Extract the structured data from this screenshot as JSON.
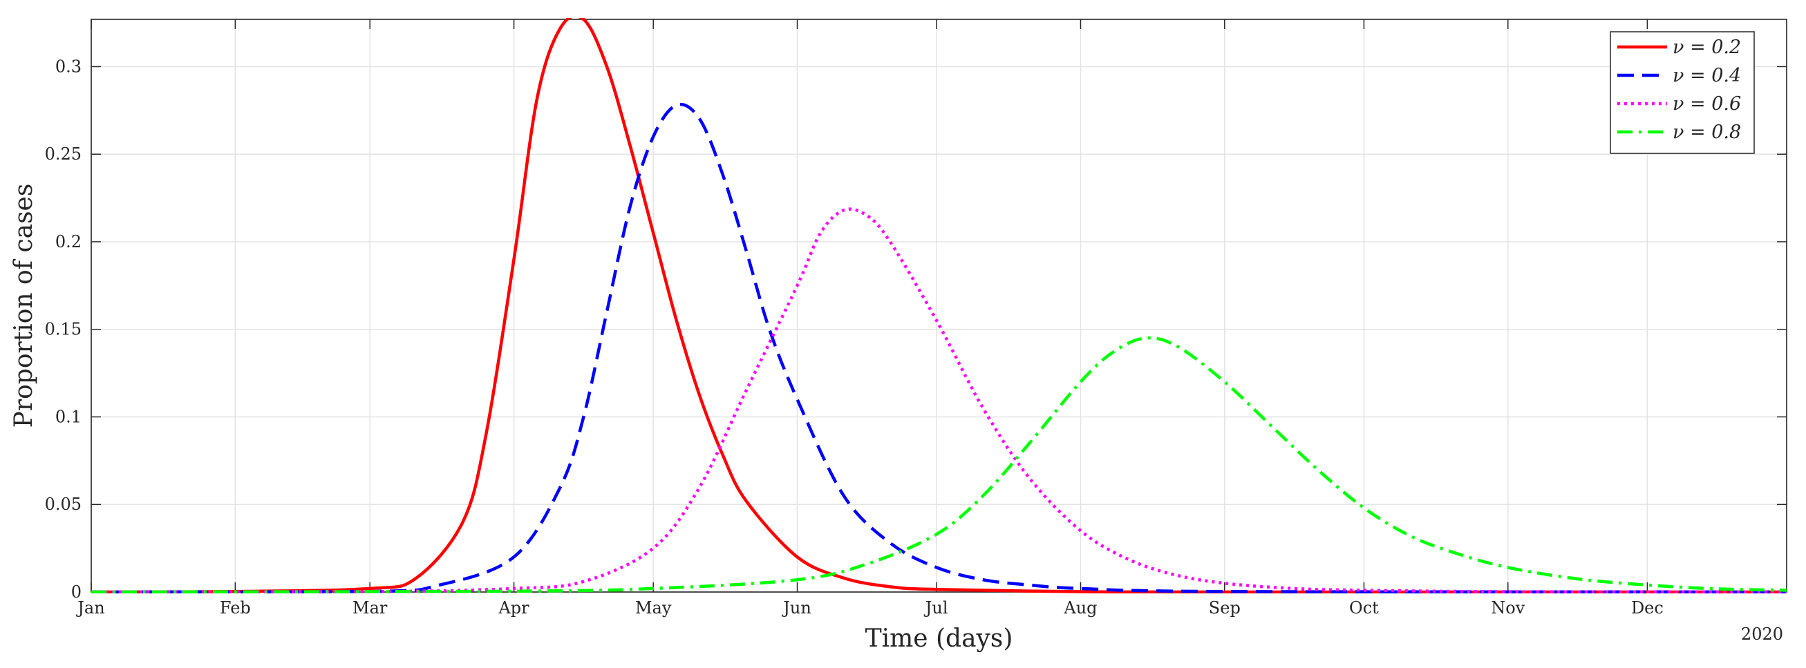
{
  "chart_data": {
    "type": "line",
    "xlabel": "Time (days)",
    "ylabel": "Proportion of cases",
    "x_ticks": [
      "Jan",
      "Feb",
      "Mar",
      "Apr",
      "May",
      "Jun",
      "Jul",
      "Aug",
      "Sep",
      "Oct",
      "Nov",
      "Dec"
    ],
    "x_tick_dates": [
      "2020-01-01",
      "2020-02-01",
      "2020-03-01",
      "2020-04-01",
      "2020-05-01",
      "2020-06-01",
      "2020-07-01",
      "2020-08-01",
      "2020-09-01",
      "2020-10-01",
      "2020-11-01",
      "2020-12-01"
    ],
    "xlim": [
      "2020-01-01",
      "2020-12-31"
    ],
    "year_label": "2020",
    "y_ticks": [
      0,
      0.05,
      0.1,
      0.15,
      0.2,
      0.25,
      0.3
    ],
    "y_tick_labels": [
      "0",
      "0.05",
      "0.1",
      "0.15",
      "0.2",
      "0.25",
      "0.3"
    ],
    "ylim": [
      0,
      0.327
    ],
    "grid": true,
    "legend_position": "top-right",
    "series": [
      {
        "name": "ν = 0.2",
        "color": "#ff0000",
        "dash": "solid",
        "x": [
          "2020-01-01",
          "2020-02-01",
          "2020-03-01",
          "2020-03-11",
          "2020-03-21",
          "2020-03-26",
          "2020-04-01",
          "2020-04-06",
          "2020-04-11",
          "2020-04-16",
          "2020-04-21",
          "2020-04-26",
          "2020-05-01",
          "2020-05-06",
          "2020-05-11",
          "2020-05-16",
          "2020-05-21",
          "2020-06-01",
          "2020-06-11",
          "2020-06-21",
          "2020-07-01",
          "2020-08-01",
          "2020-09-01",
          "2020-12-31"
        ],
        "values": [
          0,
          0.0003,
          0.002,
          0.008,
          0.04,
          0.09,
          0.19,
          0.282,
          0.322,
          0.327,
          0.3,
          0.255,
          0.205,
          0.155,
          0.112,
          0.078,
          0.052,
          0.02,
          0.008,
          0.003,
          0.0015,
          0.0002,
          0,
          0
        ]
      },
      {
        "name": "ν = 0.4",
        "color": "#0000ff",
        "dash": "dashed",
        "x": [
          "2020-01-01",
          "2020-03-01",
          "2020-03-16",
          "2020-04-01",
          "2020-04-11",
          "2020-04-16",
          "2020-04-21",
          "2020-04-26",
          "2020-05-01",
          "2020-05-06",
          "2020-05-11",
          "2020-05-16",
          "2020-05-21",
          "2020-05-26",
          "2020-06-01",
          "2020-06-11",
          "2020-06-21",
          "2020-07-01",
          "2020-07-11",
          "2020-07-21",
          "2020-08-01",
          "2020-09-01",
          "2020-12-31"
        ],
        "values": [
          0,
          0.0003,
          0.004,
          0.02,
          0.06,
          0.1,
          0.16,
          0.22,
          0.26,
          0.278,
          0.27,
          0.238,
          0.195,
          0.15,
          0.11,
          0.055,
          0.028,
          0.014,
          0.007,
          0.004,
          0.002,
          0.0003,
          0
        ]
      },
      {
        "name": "ν = 0.6",
        "color": "#ff00ff",
        "dash": "dotted",
        "x": [
          "2020-01-01",
          "2020-03-01",
          "2020-04-01",
          "2020-04-16",
          "2020-05-01",
          "2020-05-11",
          "2020-05-21",
          "2020-06-01",
          "2020-06-06",
          "2020-06-11",
          "2020-06-16",
          "2020-06-21",
          "2020-07-01",
          "2020-07-11",
          "2020-07-21",
          "2020-08-01",
          "2020-08-11",
          "2020-08-21",
          "2020-09-01",
          "2020-09-16",
          "2020-10-01",
          "2020-11-01",
          "2020-12-31"
        ],
        "values": [
          0,
          0.0002,
          0.002,
          0.006,
          0.025,
          0.06,
          0.115,
          0.175,
          0.205,
          0.218,
          0.215,
          0.2,
          0.155,
          0.105,
          0.065,
          0.035,
          0.019,
          0.01,
          0.005,
          0.002,
          0.001,
          0.0002,
          0
        ]
      },
      {
        "name": "ν = 0.8",
        "color": "#00ff00",
        "dash": "dashdot",
        "x": [
          "2020-01-01",
          "2020-04-01",
          "2020-05-01",
          "2020-06-01",
          "2020-06-16",
          "2020-07-01",
          "2020-07-11",
          "2020-07-21",
          "2020-08-01",
          "2020-08-08",
          "2020-08-15",
          "2020-08-22",
          "2020-09-01",
          "2020-09-11",
          "2020-09-21",
          "2020-10-01",
          "2020-10-11",
          "2020-10-21",
          "2020-11-01",
          "2020-11-16",
          "2020-12-01",
          "2020-12-16",
          "2020-12-31"
        ],
        "values": [
          0,
          0.0005,
          0.002,
          0.007,
          0.016,
          0.033,
          0.055,
          0.085,
          0.12,
          0.137,
          0.145,
          0.14,
          0.12,
          0.095,
          0.07,
          0.048,
          0.032,
          0.022,
          0.014,
          0.0075,
          0.004,
          0.0018,
          0.001
        ]
      }
    ]
  }
}
